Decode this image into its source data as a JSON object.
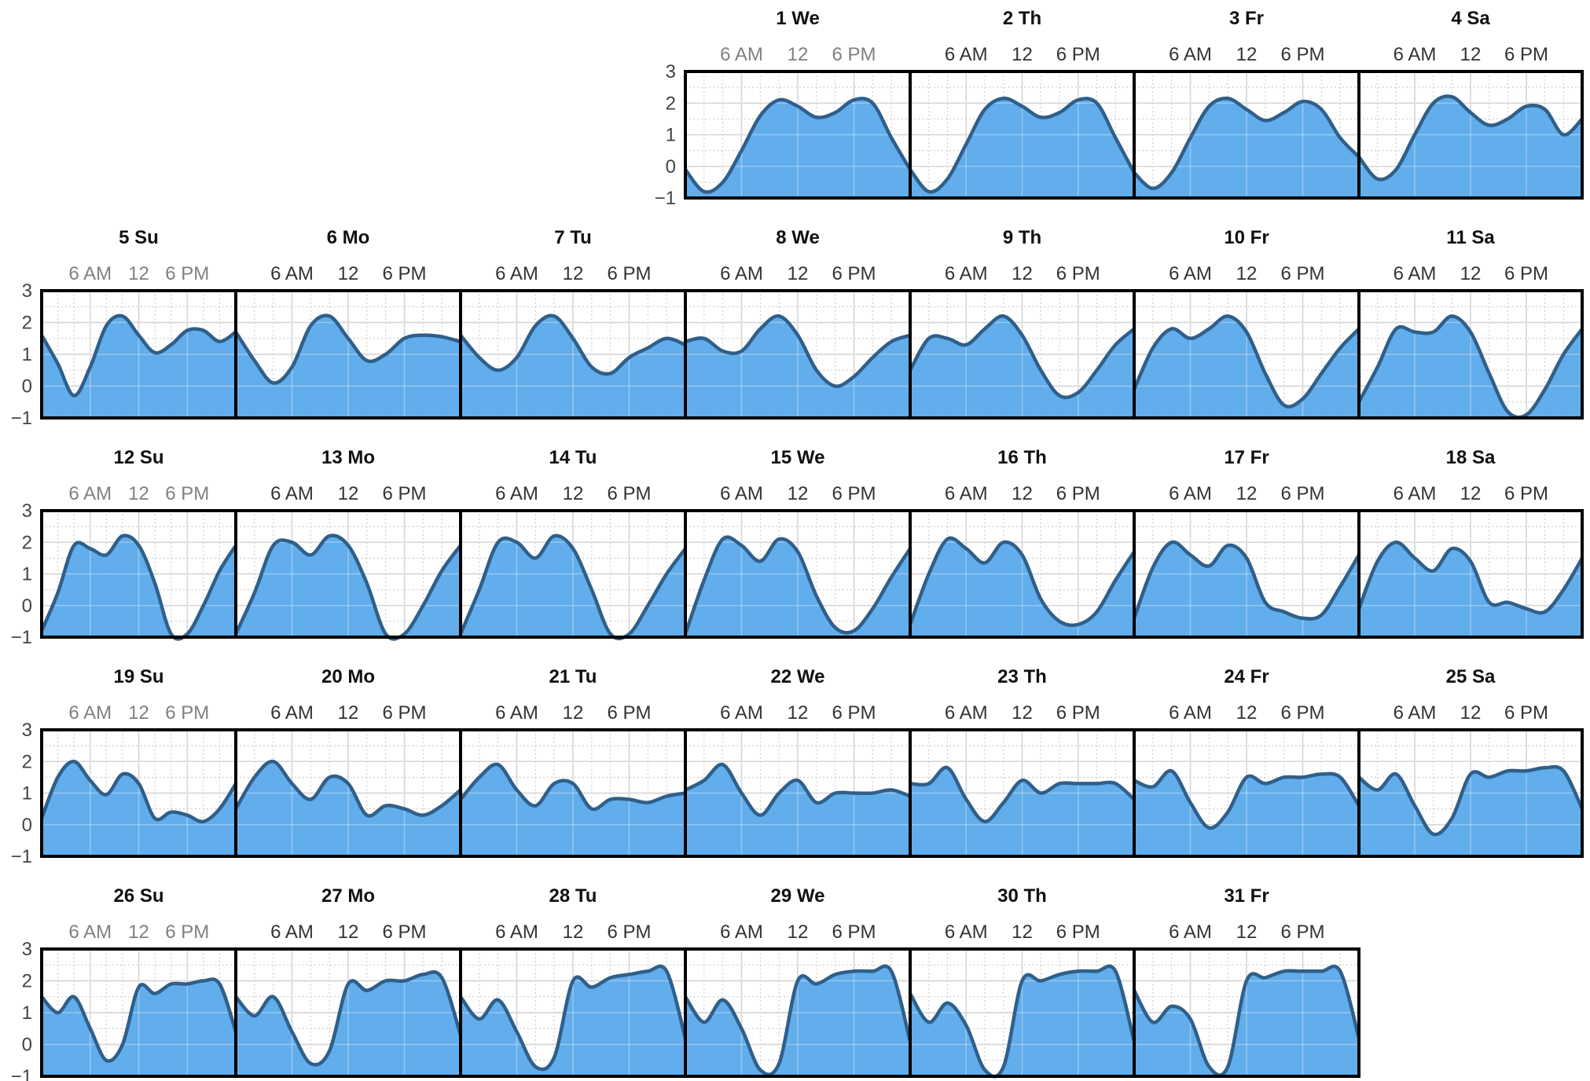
{
  "colors": {
    "fill": "#5aa9ea",
    "line": "#2f5f8a",
    "frame": "#000000"
  },
  "chart_data": {
    "type": "area",
    "title": "",
    "xlabel": "",
    "ylabel": "",
    "ylim": [
      -1,
      3
    ],
    "yticks": [
      "3",
      "2",
      "1",
      "0",
      "−1"
    ],
    "hour_labels": [
      "6 AM",
      "12",
      "6 PM"
    ],
    "grid": true,
    "days": [
      {
        "label": "1 We",
        "values": [
          -0.1,
          -0.8,
          -0.5,
          0.5,
          1.6,
          2.1,
          1.9,
          1.55,
          1.7,
          2.1,
          2.0,
          0.9,
          -0.1
        ]
      },
      {
        "label": "2 Th",
        "values": [
          -0.1,
          -0.8,
          -0.4,
          0.7,
          1.8,
          2.15,
          1.9,
          1.55,
          1.7,
          2.1,
          2.0,
          0.9,
          -0.2
        ]
      },
      {
        "label": "3 Fr",
        "values": [
          -0.2,
          -0.7,
          -0.2,
          0.9,
          1.9,
          2.15,
          1.8,
          1.45,
          1.7,
          2.05,
          1.8,
          0.9,
          0.3
        ]
      },
      {
        "label": "4 Sa",
        "values": [
          0.3,
          -0.4,
          -0.1,
          1.0,
          2.0,
          2.2,
          1.7,
          1.3,
          1.5,
          1.9,
          1.8,
          1.0,
          1.5
        ]
      },
      {
        "label": "5 Su",
        "values": [
          1.6,
          0.7,
          -0.3,
          0.6,
          1.9,
          2.2,
          1.6,
          1.05,
          1.3,
          1.75,
          1.75,
          1.4,
          1.7
        ]
      },
      {
        "label": "6 Mo",
        "values": [
          1.7,
          0.8,
          0.1,
          0.6,
          1.9,
          2.2,
          1.5,
          0.8,
          1.0,
          1.5,
          1.6,
          1.55,
          1.4
        ]
      },
      {
        "label": "7 Tu",
        "values": [
          1.6,
          0.9,
          0.5,
          0.9,
          1.9,
          2.2,
          1.5,
          0.6,
          0.4,
          0.9,
          1.2,
          1.5,
          1.3
        ]
      },
      {
        "label": "8 We",
        "values": [
          1.4,
          1.5,
          1.1,
          1.1,
          1.8,
          2.2,
          1.6,
          0.5,
          0.0,
          0.3,
          0.9,
          1.4,
          1.6
        ]
      },
      {
        "label": "9 Th",
        "values": [
          0.5,
          1.5,
          1.5,
          1.3,
          1.8,
          2.2,
          1.6,
          0.5,
          -0.3,
          -0.2,
          0.5,
          1.3,
          1.8
        ]
      },
      {
        "label": "10 Fr",
        "values": [
          -0.1,
          1.2,
          1.8,
          1.5,
          1.8,
          2.2,
          1.7,
          0.4,
          -0.6,
          -0.4,
          0.4,
          1.2,
          1.8
        ]
      },
      {
        "label": "11 Sa",
        "values": [
          -0.5,
          0.6,
          1.8,
          1.7,
          1.7,
          2.2,
          1.7,
          0.4,
          -0.8,
          -0.9,
          -0.1,
          1.0,
          1.8
        ]
      },
      {
        "label": "12 Su",
        "values": [
          -0.8,
          0.4,
          1.9,
          1.8,
          1.6,
          2.2,
          1.9,
          0.7,
          -0.9,
          -0.9,
          0.0,
          1.1,
          1.9
        ]
      },
      {
        "label": "13 Mo",
        "values": [
          -0.9,
          0.4,
          1.9,
          2.0,
          1.6,
          2.2,
          1.9,
          0.7,
          -0.9,
          -0.9,
          0.0,
          1.1,
          1.9
        ]
      },
      {
        "label": "14 Tu",
        "values": [
          -0.9,
          0.5,
          2.0,
          2.0,
          1.5,
          2.2,
          1.8,
          0.5,
          -0.9,
          -0.9,
          0.0,
          1.0,
          1.8
        ]
      },
      {
        "label": "15 We",
        "values": [
          -0.9,
          0.8,
          2.1,
          1.9,
          1.4,
          2.1,
          1.7,
          0.3,
          -0.7,
          -0.8,
          -0.1,
          0.9,
          1.8
        ]
      },
      {
        "label": "16 Th",
        "values": [
          -0.6,
          1.0,
          2.1,
          1.8,
          1.35,
          2.0,
          1.6,
          0.2,
          -0.5,
          -0.6,
          -0.2,
          0.8,
          1.7
        ]
      },
      {
        "label": "17 Fr",
        "values": [
          -0.4,
          1.2,
          2.0,
          1.6,
          1.25,
          1.9,
          1.5,
          0.1,
          -0.2,
          -0.4,
          -0.3,
          0.6,
          1.6
        ]
      },
      {
        "label": "18 Sa",
        "values": [
          -0.1,
          1.4,
          2.0,
          1.5,
          1.1,
          1.8,
          1.4,
          0.1,
          0.1,
          -0.1,
          -0.2,
          0.5,
          1.5
        ]
      },
      {
        "label": "19 Su",
        "values": [
          0.2,
          1.5,
          2.0,
          1.4,
          0.95,
          1.6,
          1.3,
          0.2,
          0.4,
          0.3,
          0.1,
          0.5,
          1.3
        ]
      },
      {
        "label": "20 Mo",
        "values": [
          0.5,
          1.5,
          2.0,
          1.3,
          0.8,
          1.5,
          1.3,
          0.3,
          0.6,
          0.5,
          0.3,
          0.6,
          1.1
        ]
      },
      {
        "label": "21 Tu",
        "values": [
          0.8,
          1.5,
          1.9,
          1.1,
          0.6,
          1.3,
          1.3,
          0.5,
          0.8,
          0.8,
          0.7,
          0.9,
          1.0
        ]
      },
      {
        "label": "22 We",
        "values": [
          1.1,
          1.4,
          1.9,
          1.0,
          0.3,
          1.0,
          1.4,
          0.7,
          1.0,
          1.0,
          1.0,
          1.1,
          0.9
        ]
      },
      {
        "label": "23 Th",
        "values": [
          1.3,
          1.3,
          1.8,
          0.8,
          0.1,
          0.7,
          1.4,
          1.0,
          1.3,
          1.3,
          1.3,
          1.3,
          0.8
        ]
      },
      {
        "label": "24 Fr",
        "values": [
          1.4,
          1.2,
          1.7,
          0.7,
          -0.1,
          0.4,
          1.5,
          1.3,
          1.5,
          1.5,
          1.6,
          1.5,
          0.6
        ]
      },
      {
        "label": "25 Sa",
        "values": [
          1.5,
          1.1,
          1.6,
          0.6,
          -0.3,
          0.2,
          1.6,
          1.5,
          1.7,
          1.7,
          1.8,
          1.7,
          0.5
        ]
      },
      {
        "label": "26 Su",
        "values": [
          1.5,
          1.0,
          1.5,
          0.5,
          -0.5,
          0.0,
          1.8,
          1.6,
          1.9,
          1.9,
          2.0,
          1.9,
          0.4
        ]
      },
      {
        "label": "27 Mo",
        "values": [
          1.5,
          0.9,
          1.5,
          0.4,
          -0.6,
          -0.2,
          1.9,
          1.7,
          2.0,
          2.0,
          2.2,
          2.1,
          0.3
        ]
      },
      {
        "label": "28 Tu",
        "values": [
          1.5,
          0.8,
          1.4,
          0.4,
          -0.7,
          -0.4,
          2.0,
          1.8,
          2.1,
          2.2,
          2.3,
          2.3,
          0.2
        ]
      },
      {
        "label": "29 We",
        "values": [
          1.5,
          0.7,
          1.4,
          0.5,
          -0.8,
          -0.6,
          2.0,
          1.9,
          2.2,
          2.3,
          2.3,
          2.3,
          0.1
        ]
      },
      {
        "label": "30 Th",
        "values": [
          1.6,
          0.7,
          1.3,
          0.6,
          -0.8,
          -0.7,
          2.0,
          2.0,
          2.2,
          2.3,
          2.3,
          2.3,
          0.1
        ]
      },
      {
        "label": "31 Fr",
        "values": [
          1.7,
          0.7,
          1.2,
          0.8,
          -0.7,
          -0.7,
          2.0,
          2.1,
          2.3,
          2.3,
          2.3,
          2.3,
          0.2
        ]
      }
    ]
  }
}
